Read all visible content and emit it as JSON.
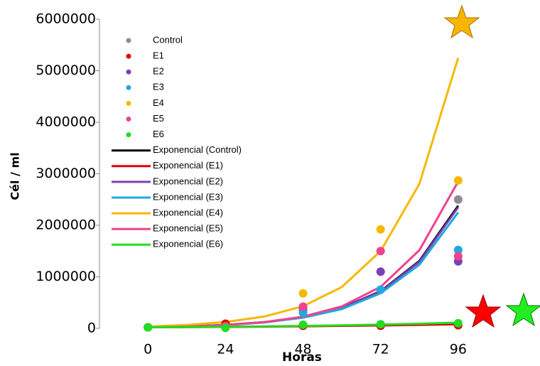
{
  "chart_data": {
    "type": "scatter",
    "x_label": "Horas",
    "y_label": "Cél / ml",
    "xlim": [
      -15,
      120
    ],
    "ylim": [
      0,
      6000000
    ],
    "xticks": [
      0,
      24,
      48,
      72,
      96
    ],
    "yticks": [
      0,
      1000000,
      2000000,
      3000000,
      4000000,
      5000000,
      6000000
    ],
    "x": [
      0,
      24,
      48,
      72,
      96
    ],
    "series": [
      {
        "name": "Control",
        "color": "#8c8c8c",
        "values": [
          20000,
          40000,
          350000,
          750000,
          2500000
        ]
      },
      {
        "name": "E1",
        "color": "#e00000",
        "values": [
          20000,
          90000,
          50000,
          50000,
          60000
        ]
      },
      {
        "name": "E2",
        "color": "#7b3fb5",
        "values": [
          20000,
          40000,
          380000,
          1100000,
          1300000
        ]
      },
      {
        "name": "E3",
        "color": "#1fa8e0",
        "values": [
          20000,
          40000,
          300000,
          750000,
          1520000
        ]
      },
      {
        "name": "E4",
        "color": "#f5b800",
        "values": [
          20000,
          40000,
          680000,
          1920000,
          2870000
        ]
      },
      {
        "name": "E5",
        "color": "#f0428f",
        "values": [
          20000,
          40000,
          420000,
          1500000,
          1400000
        ]
      },
      {
        "name": "E6",
        "color": "#22dd22",
        "values": [
          20000,
          10000,
          70000,
          80000,
          100000
        ]
      }
    ],
    "trend_x": [
      0,
      12,
      24,
      36,
      48,
      60,
      72,
      84,
      96
    ],
    "trendlines": [
      {
        "name": "Exponencial (Control)",
        "color": "#000000",
        "values": [
          20000,
          36300,
          66000,
          120000,
          218000,
          396000,
          720000,
          1308000,
          2380000
        ]
      },
      {
        "name": "Exponencial (E1)",
        "color": "#e00000",
        "values": [
          20000,
          23800,
          28300,
          33600,
          40000,
          47600,
          56600,
          67300,
          80000
        ]
      },
      {
        "name": "Exponencial (E2)",
        "color": "#7b3fb5",
        "values": [
          19700,
          35800,
          65100,
          118000,
          215000,
          391000,
          711000,
          1292000,
          2350000
        ]
      },
      {
        "name": "Exponencial (E3)",
        "color": "#1fa8e0",
        "values": [
          18900,
          34300,
          62400,
          113400,
          206000,
          374000,
          680000,
          1236000,
          2250000
        ]
      },
      {
        "name": "Exponencial (E4)",
        "color": "#f5b800",
        "values": [
          35000,
          65500,
          122500,
          229000,
          429000,
          802000,
          1500000,
          2805000,
          5250000
        ]
      },
      {
        "name": "Exponencial (E5)",
        "color": "#f0428f",
        "values": [
          17800,
          33600,
          63400,
          119600,
          225700,
          426000,
          804000,
          1517000,
          2850000
        ]
      },
      {
        "name": "Exponencial (E6)",
        "color": "#22dd22",
        "values": [
          20000,
          24800,
          30700,
          38000,
          47000,
          58200,
          72000,
          89200,
          110000
        ]
      }
    ]
  }
}
